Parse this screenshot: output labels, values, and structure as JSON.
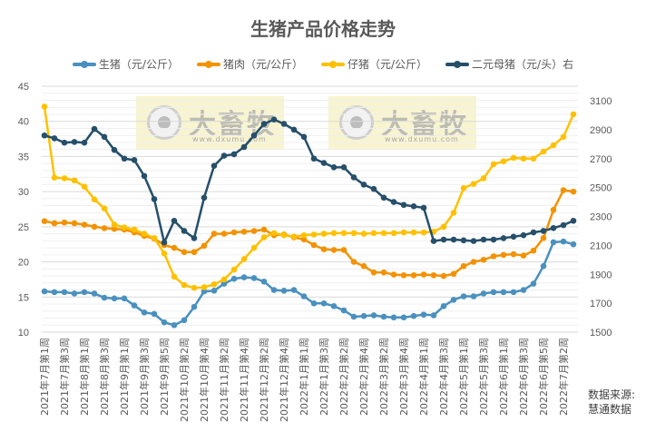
{
  "title": "生猪产品价格走势",
  "source": {
    "line1": "数据来源:",
    "line2": "慧通数据"
  },
  "watermark": {
    "text": "大畜牧",
    "url": "www.dxumu.com"
  },
  "legend": [
    {
      "label": "生猪（元/公斤）",
      "color": "#4A90BF"
    },
    {
      "label": "猪肉（元/公斤）",
      "color": "#F39200"
    },
    {
      "label": "仔猪（元/公斤）",
      "color": "#FFC000"
    },
    {
      "label": "二元母猪（元/头）右",
      "color": "#264F6A"
    }
  ],
  "chart_data": {
    "type": "line",
    "title": "生猪产品价格走势",
    "xlabel": "",
    "ylabel": "元/公斤",
    "y2label": "元/头",
    "ylim": [
      10,
      45
    ],
    "y2lim": [
      1500,
      3100
    ],
    "yticks": [
      10,
      15,
      20,
      25,
      30,
      35,
      40,
      45
    ],
    "y2ticks": [
      1500,
      1700,
      1900,
      2100,
      2300,
      2500,
      2700,
      2900,
      3100
    ],
    "grid": true,
    "legend_position": "top",
    "x_tick_labels": [
      "2021年7月第1周",
      "2021年7月第3周",
      "2021年8月第1周",
      "2021年8月第3周",
      "2021年9月第1周",
      "2021年9月第3周",
      "2021年9月第5周",
      "2021年10月第2周",
      "2021年10月第4周",
      "2021年11月第2周",
      "2021年11月第4周",
      "2021年12月第2周",
      "2021年12月第4周",
      "2022年1月第1周",
      "2022年1月第3周",
      "2022年2月第2周",
      "2022年2月第4周",
      "2022年3月第2周",
      "2022年3月第4周",
      "2022年4月第1周",
      "2022年4月第3周",
      "2022年5月第1周",
      "2022年5月第3周",
      "2022年6月第1周",
      "2022年6月第3周",
      "2022年6月第5周",
      "2022年7月第2周"
    ],
    "series": [
      {
        "name": "生猪（元/公斤）",
        "axis": "left",
        "color": "#4A90BF",
        "values": [
          15.8,
          15.7,
          15.7,
          15.5,
          15.7,
          15.5,
          14.9,
          14.8,
          14.8,
          13.8,
          12.8,
          12.6,
          11.4,
          11.0,
          11.7,
          13.6,
          15.8,
          15.9,
          16.9,
          17.6,
          17.8,
          17.7,
          17.2,
          16.0,
          15.9,
          16.0,
          15.1,
          14.1,
          14.1,
          13.7,
          13.1,
          12.2,
          12.3,
          12.4,
          12.2,
          12.1,
          12.1,
          12.3,
          12.5,
          12.4,
          13.7,
          14.6,
          15.1,
          15.1,
          15.5,
          15.7,
          15.7,
          15.7,
          16.0,
          16.9,
          19.4,
          22.8,
          22.9,
          22.5
        ]
      },
      {
        "name": "猪肉（元/公斤）",
        "axis": "left",
        "color": "#F39200",
        "values": [
          25.8,
          25.5,
          25.6,
          25.5,
          25.3,
          25.0,
          24.8,
          24.7,
          24.6,
          24.2,
          23.7,
          23.3,
          22.4,
          22.0,
          21.4,
          21.4,
          22.3,
          24.0,
          24.0,
          24.2,
          24.3,
          24.4,
          24.6,
          23.8,
          23.9,
          23.5,
          23.2,
          22.4,
          21.8,
          21.7,
          21.7,
          20.0,
          19.4,
          18.5,
          18.5,
          18.2,
          18.1,
          18.1,
          18.2,
          18.1,
          18.0,
          18.3,
          19.4,
          20.0,
          20.3,
          20.8,
          21.0,
          21.1,
          20.9,
          21.6,
          23.4,
          27.4,
          30.2,
          30.0
        ]
      },
      {
        "name": "仔猪（元/公斤）",
        "axis": "left",
        "color": "#FFC000",
        "values": [
          42.1,
          32.0,
          31.9,
          31.6,
          30.7,
          28.9,
          27.6,
          25.3,
          24.9,
          24.6,
          24.0,
          23.4,
          21.2,
          17.9,
          16.7,
          16.3,
          16.4,
          16.8,
          17.5,
          18.9,
          20.4,
          22.0,
          23.5,
          24.1,
          23.8,
          23.6,
          23.8,
          23.9,
          24.0,
          24.1,
          24.1,
          24.1,
          24.0,
          24.1,
          24.1,
          24.1,
          24.2,
          24.2,
          24.2,
          24.3,
          25.0,
          27.0,
          30.5,
          31.1,
          31.9,
          33.9,
          34.3,
          34.8,
          34.7,
          34.7,
          35.7,
          36.6,
          37.8,
          41.0
        ]
      },
      {
        "name": "二元母猪（元/头）右",
        "axis": "right",
        "color": "#264F6A",
        "values": [
          2860,
          2840,
          2810,
          2815,
          2810,
          2905,
          2850,
          2760,
          2700,
          2690,
          2580,
          2420,
          2120,
          2270,
          2200,
          2150,
          2430,
          2650,
          2720,
          2730,
          2780,
          2860,
          2940,
          2970,
          2940,
          2900,
          2850,
          2700,
          2670,
          2640,
          2640,
          2570,
          2520,
          2490,
          2430,
          2400,
          2380,
          2370,
          2360,
          2130,
          2140,
          2140,
          2135,
          2130,
          2140,
          2140,
          2150,
          2160,
          2170,
          2190,
          2200,
          2220,
          2240,
          2270
        ]
      }
    ]
  }
}
